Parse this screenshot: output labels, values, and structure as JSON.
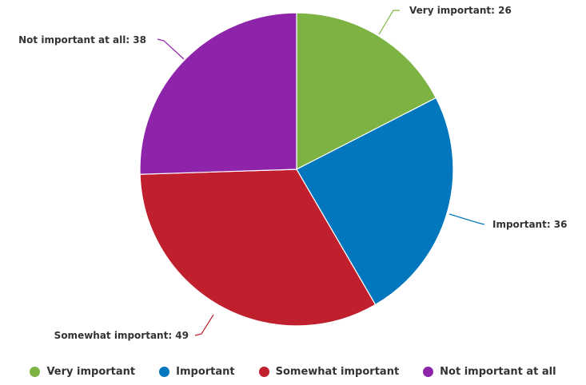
{
  "chart_data": {
    "type": "pie",
    "title": "",
    "categories": [
      "Very important",
      "Important",
      "Somewhat important",
      "Not important at all"
    ],
    "values": [
      26,
      36,
      49,
      38
    ],
    "colors": [
      "#7cb342",
      "#0277bd",
      "#c0202e",
      "#8e24aa"
    ],
    "data_labels": [
      "Very important: 26",
      "Important: 36",
      "Somewhat important: 49",
      "Not important at all: 38"
    ],
    "start_angle_deg": 0,
    "direction": "clockwise",
    "legend_position": "bottom"
  }
}
